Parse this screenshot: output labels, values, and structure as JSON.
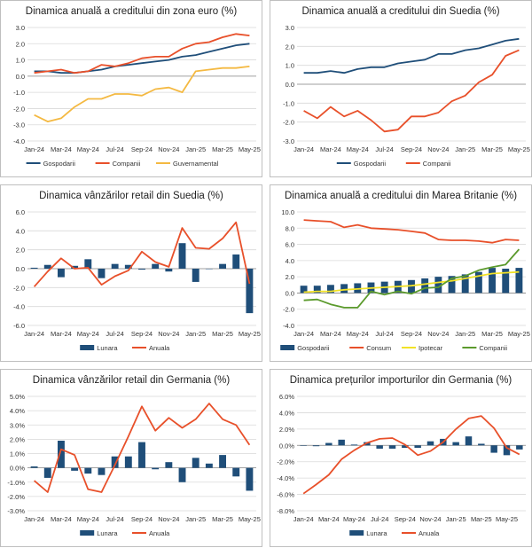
{
  "colors": {
    "blue": "#1f4e79",
    "orange": "#e8502a",
    "gold": "#f4b942",
    "yellow": "#f2e227",
    "green": "#5b9a2c",
    "grid": "#d9d9d9",
    "axis": "#888888"
  },
  "chart_data": [
    {
      "id": "c1",
      "type": "line",
      "title": "Dinamica anuală a creditului din zona euro (%)",
      "xticks": [
        "Jan-24",
        "Mar-24",
        "May-24",
        "Jul-24",
        "Sep-24",
        "Nov-24",
        "Jan-25",
        "Mar-25",
        "May-25"
      ],
      "yticks": [
        "-4.0",
        "-3.0",
        "-2.0",
        "-1.0",
        "0.0",
        "1.0",
        "2.0",
        "3.0"
      ],
      "ylim": [
        -4,
        3
      ],
      "legend": "bottom",
      "series": [
        {
          "name": "Gospodarii",
          "color": "blue",
          "kind": "line",
          "values": [
            0.3,
            0.3,
            0.2,
            0.2,
            0.3,
            0.4,
            0.6,
            0.7,
            0.8,
            0.9,
            1.0,
            1.2,
            1.3,
            1.5,
            1.7,
            1.9,
            2.0
          ]
        },
        {
          "name": "Companii",
          "color": "orange",
          "kind": "line",
          "values": [
            0.2,
            0.3,
            0.4,
            0.2,
            0.3,
            0.7,
            0.6,
            0.8,
            1.1,
            1.2,
            1.2,
            1.7,
            2.0,
            2.1,
            2.4,
            2.6,
            2.5
          ]
        },
        {
          "name": "Guvernamental",
          "color": "gold",
          "kind": "line",
          "values": [
            -2.4,
            -2.8,
            -2.6,
            -1.9,
            -1.4,
            -1.4,
            -1.1,
            -1.1,
            -1.2,
            -0.8,
            -0.7,
            -1.0,
            0.3,
            0.4,
            0.5,
            0.5,
            0.6
          ]
        }
      ]
    },
    {
      "id": "c2",
      "type": "line",
      "title": "Dinamica anuală a creditului din Suedia (%)",
      "xticks": [
        "Jan-24",
        "Mar-24",
        "May-24",
        "Jul-24",
        "Sep-24",
        "Nov-24",
        "Jan-25",
        "Mar-25",
        "May-25"
      ],
      "yticks": [
        "-3.0",
        "-2.0",
        "-1.0",
        "0.0",
        "1.0",
        "2.0",
        "3.0"
      ],
      "ylim": [
        -3,
        3
      ],
      "legend": "bottom",
      "series": [
        {
          "name": "Gospodarii",
          "color": "blue",
          "kind": "line",
          "values": [
            0.6,
            0.6,
            0.7,
            0.6,
            0.8,
            0.9,
            0.9,
            1.1,
            1.2,
            1.3,
            1.6,
            1.6,
            1.8,
            1.9,
            2.1,
            2.3,
            2.4
          ]
        },
        {
          "name": "Companii",
          "color": "orange",
          "kind": "line",
          "values": [
            -1.4,
            -1.8,
            -1.2,
            -1.7,
            -1.4,
            -1.9,
            -2.5,
            -2.4,
            -1.7,
            -1.7,
            -1.5,
            -0.9,
            -0.6,
            0.1,
            0.5,
            1.5,
            1.8
          ]
        }
      ]
    },
    {
      "id": "c3",
      "type": "bar+line",
      "title": "Dinamica vânzărilor retail din Suedia (%)",
      "xticks": [
        "Jan-24",
        "Mar-24",
        "May-24",
        "Jul-24",
        "Sep-24",
        "Nov-24",
        "Jan-25",
        "Mar-25",
        "May-25"
      ],
      "yticks": [
        "-6.0",
        "-4.0",
        "-2.0",
        "0.0",
        "2.0",
        "4.0",
        "6.0"
      ],
      "ylim": [
        -6,
        6
      ],
      "legend": "bottom",
      "series": [
        {
          "name": "Lunara",
          "color": "blue",
          "kind": "bar",
          "values": [
            0.1,
            0.4,
            -0.9,
            0.3,
            1.0,
            -1.0,
            0.5,
            0.4,
            -0.1,
            0.5,
            -0.3,
            2.7,
            -1.4,
            0.0,
            0.5,
            1.5,
            -4.7
          ]
        },
        {
          "name": "Anuala",
          "color": "orange",
          "kind": "line",
          "values": [
            -1.9,
            -0.3,
            1.1,
            0.0,
            0.1,
            -1.7,
            -0.8,
            -0.2,
            1.8,
            0.7,
            0.2,
            4.3,
            2.2,
            2.1,
            3.2,
            4.9,
            -1.6
          ]
        }
      ]
    },
    {
      "id": "c4",
      "type": "bar+line",
      "title": "Dinamica anuală a creditului din Marea Britanie (%)",
      "xticks": [
        "Jan-24",
        "Mar-24",
        "May-24",
        "Jul-24",
        "Sep-24",
        "Nov-24",
        "Jan-25",
        "Mar-25",
        "May-25"
      ],
      "yticks": [
        "-4.0",
        "-2.0",
        "0.0",
        "2.0",
        "4.0",
        "6.0",
        "8.0",
        "10.0"
      ],
      "ylim": [
        -4,
        10
      ],
      "legend": "bottom",
      "series": [
        {
          "name": "Gospodarii",
          "color": "blue",
          "kind": "bar",
          "values": [
            0.9,
            0.9,
            1.0,
            1.1,
            1.2,
            1.3,
            1.4,
            1.5,
            1.6,
            1.8,
            2.0,
            2.1,
            2.3,
            2.6,
            3.1,
            3.0,
            3.1
          ]
        },
        {
          "name": "Consum",
          "color": "orange",
          "kind": "line",
          "values": [
            9.0,
            8.9,
            8.8,
            8.1,
            8.4,
            8.0,
            7.9,
            7.8,
            7.6,
            7.4,
            6.6,
            6.5,
            6.5,
            6.4,
            6.2,
            6.6,
            6.5
          ]
        },
        {
          "name": "Ipotecar",
          "color": "yellow",
          "kind": "line",
          "values": [
            0.1,
            0.2,
            0.2,
            0.4,
            0.5,
            0.6,
            0.7,
            0.8,
            0.9,
            1.1,
            1.3,
            1.5,
            1.8,
            2.1,
            2.4,
            2.5,
            2.6
          ]
        },
        {
          "name": "Companii",
          "color": "green",
          "kind": "line",
          "values": [
            -0.9,
            -0.8,
            -1.4,
            -1.8,
            -1.8,
            0.2,
            -0.2,
            0.2,
            -0.1,
            0.6,
            0.7,
            1.8,
            2.1,
            2.8,
            3.2,
            3.5,
            5.4
          ]
        }
      ]
    },
    {
      "id": "c5",
      "type": "bar+line",
      "title": "Dinamica vânzărilor retail din Germania (%)",
      "xticks": [
        "Jan-24",
        "Mar-24",
        "May-24",
        "Jul-24",
        "Sep-24",
        "Nov-24",
        "Jan-25",
        "Mar-25",
        "May-25"
      ],
      "yticks": [
        "-3.0%",
        "-2.0%",
        "-1.0%",
        "0.0%",
        "1.0%",
        "2.0%",
        "3.0%",
        "4.0%",
        "5.0%"
      ],
      "ylim": [
        -3,
        5
      ],
      "legend": "bottom",
      "series": [
        {
          "name": "Lunara",
          "color": "blue",
          "kind": "bar",
          "values": [
            0.1,
            -0.7,
            1.9,
            -0.2,
            -0.4,
            -0.5,
            0.8,
            0.8,
            1.8,
            -0.1,
            0.4,
            -1.0,
            0.7,
            0.3,
            0.9,
            -0.6,
            -1.6
          ]
        },
        {
          "name": "Anuala",
          "color": "orange",
          "kind": "line",
          "values": [
            -0.9,
            -1.7,
            1.3,
            0.9,
            -1.5,
            -1.7,
            0.2,
            2.2,
            4.3,
            2.6,
            3.5,
            2.8,
            3.4,
            4.5,
            3.4,
            3.0,
            1.6
          ]
        }
      ]
    },
    {
      "id": "c6",
      "type": "bar+line",
      "title": "Dinamica prețurilor importurilor din Germania (%)",
      "xticks": [
        "Jan-24",
        "Mar-24",
        "May-24",
        "Jul-24",
        "Sep-24",
        "Nov-24",
        "Jan-25",
        "Mar-25",
        "May-25"
      ],
      "yticks": [
        "-8.0%",
        "-6.0%",
        "-4.0%",
        "-2.0%",
        "0.0%",
        "2.0%",
        "4.0%",
        "6.0%"
      ],
      "ylim": [
        -8,
        6
      ],
      "legend": "bottom",
      "series": [
        {
          "name": "Lunara",
          "color": "blue",
          "kind": "bar",
          "values": [
            0.0,
            -0.1,
            0.3,
            0.7,
            0.1,
            0.4,
            -0.4,
            -0.4,
            -0.3,
            -0.3,
            0.5,
            0.8,
            0.4,
            1.1,
            0.2,
            -0.9,
            -1.2,
            -0.5
          ]
        },
        {
          "name": "Anuala",
          "color": "orange",
          "kind": "line",
          "values": [
            -5.9,
            -4.8,
            -3.6,
            -1.7,
            -0.6,
            0.3,
            0.8,
            0.9,
            0.1,
            -1.2,
            -0.7,
            0.4,
            2.0,
            3.3,
            3.6,
            2.1,
            -0.3,
            -1.1
          ]
        }
      ]
    }
  ]
}
